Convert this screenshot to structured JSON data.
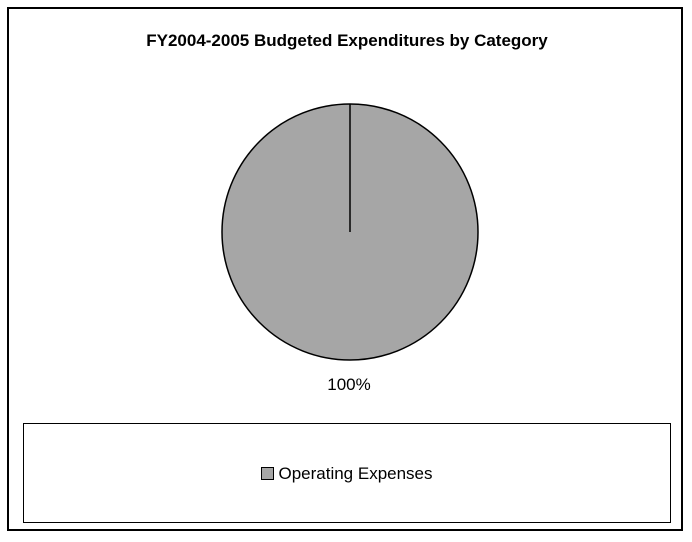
{
  "chart_data": {
    "type": "pie",
    "title": "FY2004-2005 Budgeted Expenditures by Category",
    "slices": [
      {
        "name": "Operating Expenses",
        "value": 100,
        "label": "100%",
        "color": "#a6a6a6"
      }
    ],
    "legend_position": "bottom"
  }
}
